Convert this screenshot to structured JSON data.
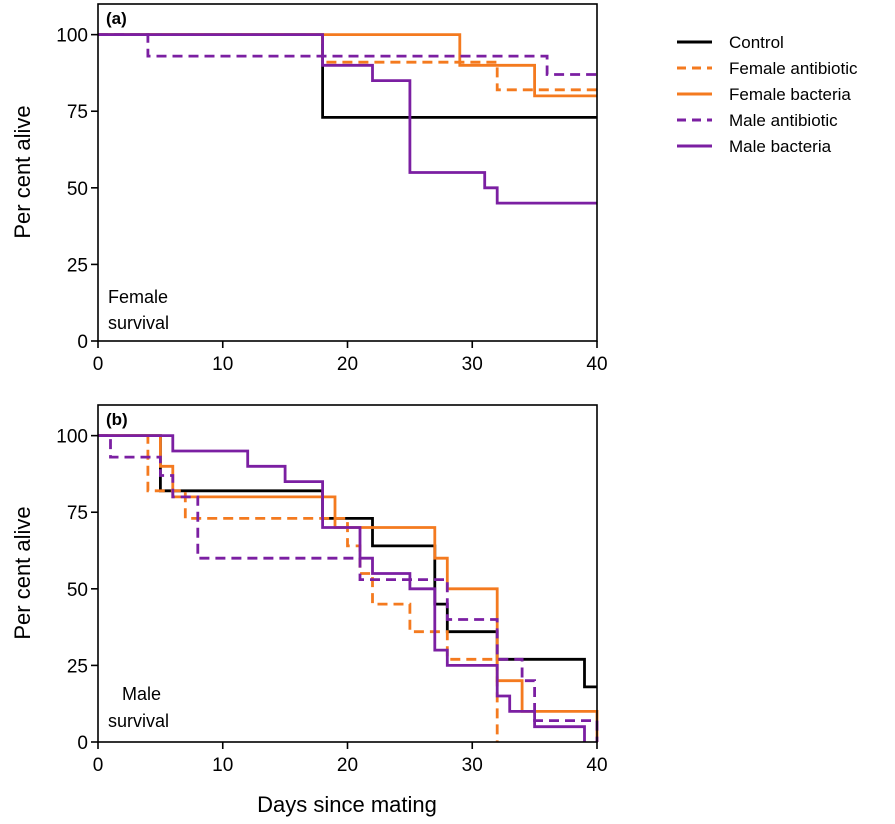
{
  "chart_data": [
    {
      "type": "line",
      "step": true,
      "panel_label": "(a)",
      "annotation": [
        "Female",
        "survival"
      ],
      "xlabel": "",
      "ylabel": "Per cent alive",
      "xlim": [
        0,
        40
      ],
      "ylim": [
        0,
        110
      ],
      "xticks": [
        0,
        10,
        20,
        30,
        40
      ],
      "yticks": [
        0,
        25,
        50,
        75,
        100
      ],
      "series": [
        {
          "name": "Control",
          "color": "#000000",
          "dashed": false,
          "points": [
            [
              0,
              100
            ],
            [
              18,
              100
            ],
            [
              18,
              73
            ],
            [
              40,
              73
            ]
          ]
        },
        {
          "name": "Female antibiotic",
          "color": "#f47a1f",
          "dashed": true,
          "points": [
            [
              0,
              100
            ],
            [
              18,
              100
            ],
            [
              18,
              91
            ],
            [
              32,
              91
            ],
            [
              32,
              82
            ],
            [
              40,
              82
            ]
          ]
        },
        {
          "name": "Female bacteria",
          "color": "#f47a1f",
          "dashed": false,
          "points": [
            [
              0,
              100
            ],
            [
              29,
              100
            ],
            [
              29,
              90
            ],
            [
              35,
              90
            ],
            [
              35,
              80
            ],
            [
              40,
              80
            ]
          ]
        },
        {
          "name": "Male antibiotic",
          "color": "#7b1fa2",
          "dashed": true,
          "points": [
            [
              0,
              100
            ],
            [
              4,
              100
            ],
            [
              4,
              93
            ],
            [
              36,
              93
            ],
            [
              36,
              87
            ],
            [
              40,
              87
            ]
          ]
        },
        {
          "name": "Male bacteria",
          "color": "#7b1fa2",
          "dashed": false,
          "points": [
            [
              0,
              100
            ],
            [
              18,
              100
            ],
            [
              18,
              90
            ],
            [
              22,
              90
            ],
            [
              22,
              85
            ],
            [
              25,
              85
            ],
            [
              25,
              55
            ],
            [
              31,
              55
            ],
            [
              31,
              50
            ],
            [
              32,
              50
            ],
            [
              32,
              45
            ],
            [
              40,
              45
            ]
          ]
        }
      ]
    },
    {
      "type": "line",
      "step": true,
      "panel_label": "(b)",
      "annotation": [
        "Male",
        "survival"
      ],
      "xlabel": "Days since mating",
      "ylabel": "Per cent alive",
      "xlim": [
        0,
        40
      ],
      "ylim": [
        0,
        110
      ],
      "xticks": [
        0,
        10,
        20,
        30,
        40
      ],
      "yticks": [
        0,
        25,
        50,
        75,
        100
      ],
      "series": [
        {
          "name": "Control",
          "color": "#000000",
          "dashed": false,
          "points": [
            [
              0,
              100
            ],
            [
              5,
              100
            ],
            [
              5,
              82
            ],
            [
              18,
              82
            ],
            [
              18,
              73
            ],
            [
              22,
              73
            ],
            [
              22,
              64
            ],
            [
              27,
              64
            ],
            [
              27,
              45
            ],
            [
              28,
              45
            ],
            [
              28,
              36
            ],
            [
              32,
              36
            ],
            [
              32,
              27
            ],
            [
              39,
              27
            ],
            [
              39,
              18
            ],
            [
              40,
              18
            ]
          ]
        },
        {
          "name": "Female antibiotic",
          "color": "#f47a1f",
          "dashed": true,
          "points": [
            [
              0,
              100
            ],
            [
              4,
              100
            ],
            [
              4,
              82
            ],
            [
              7,
              82
            ],
            [
              7,
              73
            ],
            [
              20,
              73
            ],
            [
              20,
              64
            ],
            [
              21,
              64
            ],
            [
              21,
              55
            ],
            [
              22,
              55
            ],
            [
              22,
              45
            ],
            [
              25,
              45
            ],
            [
              25,
              36
            ],
            [
              28,
              36
            ],
            [
              28,
              27
            ],
            [
              32,
              27
            ],
            [
              32,
              0
            ]
          ]
        },
        {
          "name": "Female bacteria",
          "color": "#f47a1f",
          "dashed": false,
          "points": [
            [
              0,
              100
            ],
            [
              5,
              100
            ],
            [
              5,
              90
            ],
            [
              6,
              90
            ],
            [
              6,
              80
            ],
            [
              19,
              80
            ],
            [
              19,
              70
            ],
            [
              27,
              70
            ],
            [
              27,
              60
            ],
            [
              28,
              60
            ],
            [
              28,
              50
            ],
            [
              32,
              50
            ],
            [
              32,
              20
            ],
            [
              34,
              20
            ],
            [
              34,
              10
            ],
            [
              40,
              10
            ],
            [
              40,
              0
            ]
          ]
        },
        {
          "name": "Male antibiotic",
          "color": "#7b1fa2",
          "dashed": true,
          "points": [
            [
              0,
              100
            ],
            [
              1,
              100
            ],
            [
              1,
              93
            ],
            [
              5,
              93
            ],
            [
              5,
              87
            ],
            [
              6,
              87
            ],
            [
              6,
              80
            ],
            [
              8,
              80
            ],
            [
              8,
              73
            ],
            [
              8,
              73
            ],
            [
              8,
              60
            ],
            [
              21,
              60
            ],
            [
              21,
              53
            ],
            [
              28,
              53
            ],
            [
              28,
              40
            ],
            [
              32,
              40
            ],
            [
              32,
              27
            ],
            [
              34,
              27
            ],
            [
              34,
              20
            ],
            [
              35,
              20
            ],
            [
              35,
              7
            ],
            [
              40,
              7
            ],
            [
              40,
              0
            ]
          ]
        },
        {
          "name": "Male bacteria",
          "color": "#7b1fa2",
          "dashed": false,
          "points": [
            [
              0,
              100
            ],
            [
              6,
              100
            ],
            [
              6,
              95
            ],
            [
              12,
              95
            ],
            [
              12,
              90
            ],
            [
              15,
              90
            ],
            [
              15,
              85
            ],
            [
              18,
              85
            ],
            [
              18,
              70
            ],
            [
              21,
              70
            ],
            [
              21,
              60
            ],
            [
              22,
              60
            ],
            [
              22,
              55
            ],
            [
              25,
              55
            ],
            [
              25,
              50
            ],
            [
              27,
              50
            ],
            [
              27,
              30
            ],
            [
              28,
              30
            ],
            [
              28,
              25
            ],
            [
              32,
              25
            ],
            [
              32,
              15
            ],
            [
              33,
              15
            ],
            [
              33,
              10
            ],
            [
              35,
              10
            ],
            [
              35,
              5
            ],
            [
              39,
              5
            ],
            [
              39,
              0
            ]
          ]
        }
      ]
    }
  ],
  "legend": [
    {
      "label": "Control",
      "color": "#000000",
      "dashed": false
    },
    {
      "label": "Female antibiotic",
      "color": "#f47a1f",
      "dashed": true
    },
    {
      "label": "Female bacteria",
      "color": "#f47a1f",
      "dashed": false
    },
    {
      "label": "Male antibiotic",
      "color": "#7b1fa2",
      "dashed": true
    },
    {
      "label": "Male bacteria",
      "color": "#7b1fa2",
      "dashed": false
    }
  ]
}
